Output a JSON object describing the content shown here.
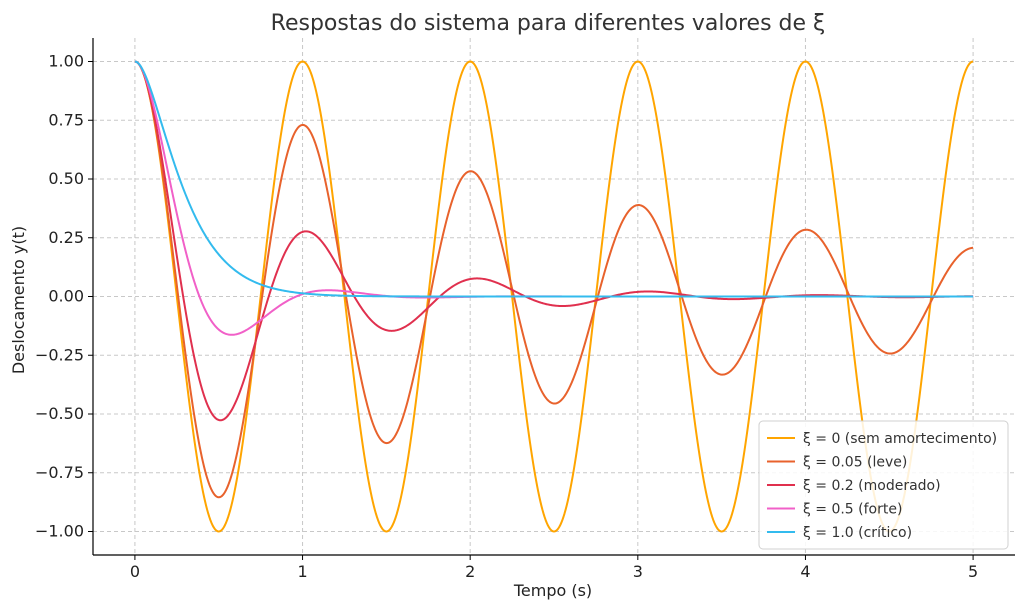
{
  "chart_data": {
    "type": "line",
    "title": "Respostas do sistema para diferentes valores de ξ",
    "xlabel": "Tempo (s)",
    "ylabel": "Deslocamento y(t)",
    "xlim": [
      -0.25,
      5.25
    ],
    "ylim": [
      -1.1,
      1.1
    ],
    "x_ticks": [
      0,
      1,
      2,
      3,
      4,
      5
    ],
    "x_tick_labels": [
      "0",
      "1",
      "2",
      "3",
      "4",
      "5"
    ],
    "y_ticks": [
      1.0,
      0.75,
      0.5,
      0.25,
      0.0,
      -0.25,
      -0.5,
      -0.75,
      -1.0
    ],
    "y_tick_labels": [
      "1.00",
      "0.75",
      "0.50",
      "0.25",
      "0.00",
      "−0.25",
      "−0.50",
      "−0.75",
      "−1.00"
    ],
    "grid": true,
    "legend_position": "lower-right",
    "series": [
      {
        "name": "ξ = 0 (sem amortecimento)",
        "color": "#ffa500",
        "zeta": 0
      },
      {
        "name": "ξ = 0.05 (leve)",
        "color": "#e8622c",
        "zeta": 0.05
      },
      {
        "name": "ξ = 0.2 (moderado)",
        "color": "#e0304e",
        "zeta": 0.2
      },
      {
        "name": "ξ = 0.5 (forte)",
        "color": "#f160c8",
        "zeta": 0.5
      },
      {
        "name": "ξ = 1.0 (crítico)",
        "color": "#33bbee",
        "zeta": 1.0
      }
    ],
    "natural_frequency_rad_s": 6.283,
    "t_range": [
      0,
      5
    ]
  }
}
